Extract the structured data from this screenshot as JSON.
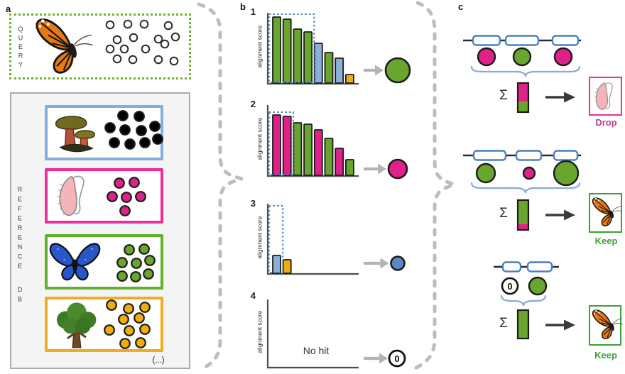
{
  "colors": {
    "green": "#68a62e",
    "pink": "#e0218a",
    "blue_bar": "#8ab0d8",
    "blue_circle": "#5b87c2",
    "yellow": "#f1ad0b",
    "outline": "#1c1c1c",
    "axis": "#4d4d4d",
    "exon_blue": "#4a80c4",
    "brace_blue": "#8aa9d6",
    "selection_blue": "#4a80c4",
    "query_dot_green": "#6db32c",
    "gray_arrow": "#b3b3b3",
    "dash_gray": "#bdbdbd",
    "black_arrow": "#3a3a3a",
    "drop_pink": "#c13a9e",
    "keep_green": "#3aa335",
    "box_pink": "#e8309a",
    "box_green": "#3aa335",
    "entry_blue": "#85aed8",
    "entry_pink": "#e8309a",
    "entry_green": "#61b02e",
    "entry_yellow": "#eead1e"
  },
  "panel_a": {
    "label": "a",
    "query": {
      "label": "QUERY",
      "creature": "monarch-butterfly",
      "circles": {
        "fill": "#ffffff",
        "count": 16,
        "positions": [
          [
            155,
            35
          ],
          [
            180,
            34
          ],
          [
            203,
            34
          ],
          [
            237,
            36
          ],
          [
            165,
            56
          ],
          [
            188,
            53
          ],
          [
            223,
            55
          ],
          [
            247,
            52
          ],
          [
            155,
            69
          ],
          [
            175,
            69
          ],
          [
            205,
            69
          ],
          [
            232,
            62
          ],
          [
            165,
            83
          ],
          [
            187,
            84
          ],
          [
            223,
            84
          ],
          [
            245,
            86
          ]
        ]
      }
    },
    "reference": {
      "label": "REFERENCE DB",
      "more_label": "(...)",
      "entries": [
        {
          "name": "fungus",
          "creature": "mushroom",
          "border_color_key": "entry_blue",
          "circle_color_key": "blue_bar",
          "circles": [
            [
              173,
              163
            ],
            [
              196,
              164
            ],
            [
              155,
              180
            ],
            [
              176,
              183
            ],
            [
              199,
              184
            ],
            [
              218,
              178
            ],
            [
              161,
              201
            ],
            [
              183,
              203
            ],
            [
              204,
              201
            ],
            [
              222,
              196
            ]
          ]
        },
        {
          "name": "larva",
          "creature": "larva",
          "border_color_key": "entry_pink",
          "circle_color_key": "pink",
          "circles": [
            [
              168,
              258
            ],
            [
              189,
              257
            ],
            [
              158,
              277
            ],
            [
              178,
              278
            ],
            [
              198,
              277
            ],
            [
              176,
              297
            ]
          ]
        },
        {
          "name": "butterfly",
          "creature": "morpho-butterfly",
          "border_color_key": "entry_green",
          "circle_color_key": "green",
          "circles": [
            [
              182,
              352
            ],
            [
              203,
              351
            ],
            [
              172,
              370
            ],
            [
              192,
              371
            ],
            [
              211,
              367
            ],
            [
              172,
              389
            ],
            [
              191,
              390
            ],
            [
              209,
              386
            ]
          ]
        },
        {
          "name": "tree",
          "creature": "tree",
          "border_color_key": "entry_yellow",
          "circle_color_key": "yellow",
          "circles": [
            [
              157,
              430
            ],
            [
              181,
              435
            ],
            [
              204,
              433
            ],
            [
              174,
              450
            ],
            [
              196,
              448
            ],
            [
              154,
              465
            ],
            [
              182,
              466
            ],
            [
              204,
              464
            ],
            [
              176,
              484
            ],
            [
              198,
              483
            ]
          ]
        }
      ]
    }
  },
  "panel_b": {
    "label": "b",
    "ylabel": "alignment score",
    "charts": [
      {
        "number": "1",
        "bars": [
          {
            "value": 93,
            "color": "green"
          },
          {
            "value": 90,
            "color": "green"
          },
          {
            "value": 76,
            "color": "green"
          },
          {
            "value": 72,
            "color": "green"
          },
          {
            "value": 56,
            "color": "blue"
          },
          {
            "value": 43,
            "color": "green"
          },
          {
            "value": 35,
            "color": "blue"
          },
          {
            "value": 12,
            "color": "yellow"
          }
        ],
        "selected_count": 4,
        "result": {
          "kind": "circle",
          "color": "green",
          "r": 17
        }
      },
      {
        "number": "2",
        "bars": [
          {
            "value": 85,
            "color": "pink"
          },
          {
            "value": 83,
            "color": "pink"
          },
          {
            "value": 74,
            "color": "green"
          },
          {
            "value": 72,
            "color": "green"
          },
          {
            "value": 64,
            "color": "pink"
          },
          {
            "value": 52,
            "color": "green"
          },
          {
            "value": 38,
            "color": "pink"
          },
          {
            "value": 22,
            "color": "green"
          }
        ],
        "selected_count": 2,
        "result": {
          "kind": "circle",
          "color": "pink",
          "r": 13
        }
      },
      {
        "number": "3",
        "bars": [
          {
            "value": 25,
            "color": "blue"
          },
          {
            "value": 19,
            "color": "yellow"
          }
        ],
        "selected_count": 1,
        "result": {
          "kind": "circle",
          "color": "blue_circle",
          "r": 9.5
        }
      },
      {
        "number": "4",
        "bars": [],
        "selected_count": 0,
        "no_hit_label": "No hit",
        "result": {
          "kind": "zero",
          "label": "0",
          "r": 11
        }
      }
    ]
  },
  "panel_c": {
    "label": "c",
    "sigma": "Σ",
    "rows": [
      {
        "circles": [
          {
            "color": "pink",
            "r": 12
          },
          {
            "color": "green",
            "r": 12
          },
          {
            "color": "pink",
            "r": 12
          }
        ],
        "sum_segments": [
          {
            "color": "pink",
            "frac": 0.64
          },
          {
            "color": "green",
            "frac": 0.36
          }
        ],
        "verdict": {
          "label": "Drop",
          "color_key": "drop_pink",
          "box_color_key": "box_pink",
          "creature": "larva"
        }
      },
      {
        "circles": [
          {
            "color": "green",
            "r": 13
          },
          {
            "color": "pink",
            "r": 8
          },
          {
            "color": "green",
            "r": 17
          }
        ],
        "sum_segments": [
          {
            "color": "green",
            "frac": 0.8
          },
          {
            "color": "pink",
            "frac": 0.2
          }
        ],
        "verdict": {
          "label": "Keep",
          "color_key": "keep_green",
          "box_color_key": "box_green",
          "creature": "monarch-butterfly"
        }
      },
      {
        "circles": [
          {
            "kind": "zero",
            "label": "0",
            "r": 11
          },
          {
            "color": "green",
            "r": 12
          }
        ],
        "sum_segments": [
          {
            "color": "green",
            "frac": 1.0
          }
        ],
        "verdict": {
          "label": "Keep",
          "color_key": "keep_green",
          "box_color_key": "box_green",
          "creature": "monarch-butterfly"
        }
      }
    ]
  }
}
